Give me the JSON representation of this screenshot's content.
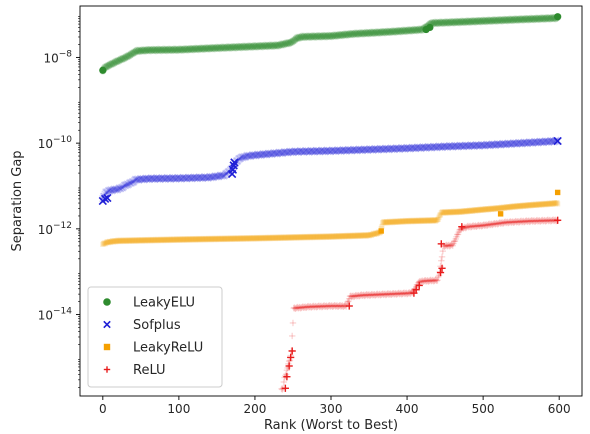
{
  "chart_data": {
    "type": "scatter",
    "title": "",
    "xlabel": "Rank (Worst to Best)",
    "ylabel": "Separation Gap",
    "x_ticks": [
      "0",
      "100",
      "200",
      "300",
      "400",
      "500",
      "600"
    ],
    "y_ticks": [
      "10^-14",
      "10^-12",
      "10^-10",
      "10^-8"
    ],
    "xlim": [
      -30,
      630
    ],
    "ylim_log10": [
      -15.9,
      -6.8
    ],
    "y_scale": "log",
    "grid": false,
    "legend_position": "lower-left",
    "series": [
      {
        "name": "LeakyELU",
        "color": "#2e8b2e",
        "marker": "circle",
        "curve": [
          [
            0,
            -8.3
          ],
          [
            2,
            -8.25
          ],
          [
            6,
            -8.2
          ],
          [
            12,
            -8.15
          ],
          [
            20,
            -8.08
          ],
          [
            30,
            -8.0
          ],
          [
            38,
            -7.92
          ],
          [
            44,
            -7.85
          ],
          [
            60,
            -7.83
          ],
          [
            100,
            -7.82
          ],
          [
            150,
            -7.78
          ],
          [
            230,
            -7.72
          ],
          [
            248,
            -7.65
          ],
          [
            255,
            -7.55
          ],
          [
            262,
            -7.52
          ],
          [
            300,
            -7.5
          ],
          [
            330,
            -7.45
          ],
          [
            380,
            -7.4
          ],
          [
            420,
            -7.35
          ],
          [
            426,
            -7.28
          ],
          [
            432,
            -7.2
          ],
          [
            460,
            -7.18
          ],
          [
            500,
            -7.15
          ],
          [
            540,
            -7.12
          ],
          [
            598,
            -7.08
          ]
        ],
        "highlight": [
          [
            0,
            -8.3
          ],
          [
            425,
            -7.35
          ],
          [
            430,
            -7.3
          ],
          [
            598,
            -7.05
          ]
        ]
      },
      {
        "name": "Sofplus",
        "color": "#1f1fd6",
        "marker": "x",
        "curve": [
          [
            0,
            -11.3
          ],
          [
            4,
            -11.15
          ],
          [
            10,
            -11.1
          ],
          [
            18,
            -11.08
          ],
          [
            24,
            -11.05
          ],
          [
            30,
            -10.98
          ],
          [
            38,
            -10.92
          ],
          [
            44,
            -10.85
          ],
          [
            60,
            -10.83
          ],
          [
            100,
            -10.82
          ],
          [
            140,
            -10.8
          ],
          [
            160,
            -10.75
          ],
          [
            170,
            -10.6
          ],
          [
            175,
            -10.45
          ],
          [
            180,
            -10.35
          ],
          [
            190,
            -10.3
          ],
          [
            200,
            -10.28
          ],
          [
            250,
            -10.2
          ],
          [
            300,
            -10.18
          ],
          [
            350,
            -10.15
          ],
          [
            400,
            -10.12
          ],
          [
            450,
            -10.08
          ],
          [
            500,
            -10.05
          ],
          [
            550,
            -10.0
          ],
          [
            598,
            -9.95
          ]
        ],
        "highlight": [
          [
            0,
            -11.35
          ],
          [
            3,
            -11.3
          ],
          [
            6,
            -11.28
          ],
          [
            170,
            -10.72
          ],
          [
            171,
            -10.62
          ],
          [
            172,
            -10.52
          ],
          [
            173,
            -10.45
          ],
          [
            598,
            -9.95
          ]
        ]
      },
      {
        "name": "LeakyReLU",
        "color": "#f5a000",
        "marker": "square",
        "curve": [
          [
            0,
            -12.35
          ],
          [
            5,
            -12.32
          ],
          [
            10,
            -12.3
          ],
          [
            20,
            -12.28
          ],
          [
            100,
            -12.25
          ],
          [
            200,
            -12.22
          ],
          [
            300,
            -12.18
          ],
          [
            350,
            -12.15
          ],
          [
            365,
            -12.08
          ],
          [
            368,
            -11.85
          ],
          [
            400,
            -11.82
          ],
          [
            440,
            -11.8
          ],
          [
            445,
            -11.62
          ],
          [
            470,
            -11.6
          ],
          [
            500,
            -11.55
          ],
          [
            520,
            -11.52
          ],
          [
            540,
            -11.48
          ],
          [
            560,
            -11.45
          ],
          [
            598,
            -11.4
          ]
        ],
        "highlight": [
          [
            366,
            -12.05
          ],
          [
            523,
            -11.65
          ],
          [
            598,
            -11.15
          ]
        ]
      },
      {
        "name": "ReLU",
        "color": "#e81c1c",
        "marker": "plus",
        "curve": [
          [
            235,
            -15.75
          ],
          [
            237,
            -15.72
          ],
          [
            239,
            -15.45
          ],
          [
            241,
            -15.4
          ],
          [
            244,
            -15.15
          ],
          [
            246,
            -15.05
          ],
          [
            248,
            -14.85
          ],
          [
            251,
            -13.85
          ],
          [
            270,
            -13.82
          ],
          [
            300,
            -13.8
          ],
          [
            320,
            -13.8
          ],
          [
            325,
            -13.58
          ],
          [
            340,
            -13.55
          ],
          [
            380,
            -13.52
          ],
          [
            405,
            -13.5
          ],
          [
            410,
            -13.42
          ],
          [
            415,
            -13.25
          ],
          [
            420,
            -13.22
          ],
          [
            440,
            -13.2
          ],
          [
            443,
            -13.0
          ],
          [
            448,
            -12.4
          ],
          [
            460,
            -12.38
          ],
          [
            470,
            -12.0
          ],
          [
            480,
            -11.95
          ],
          [
            500,
            -11.92
          ],
          [
            530,
            -11.85
          ],
          [
            560,
            -11.82
          ],
          [
            598,
            -11.8
          ]
        ],
        "highlight": [
          [
            240,
            -15.72
          ],
          [
            242,
            -15.45
          ],
          [
            245,
            -15.2
          ],
          [
            247,
            -15.0
          ],
          [
            249,
            -14.85
          ],
          [
            324,
            -13.8
          ],
          [
            409,
            -13.5
          ],
          [
            412,
            -13.42
          ],
          [
            416,
            -13.32
          ],
          [
            444,
            -13.02
          ],
          [
            446,
            -12.92
          ],
          [
            445,
            -12.35
          ],
          [
            472,
            -11.95
          ],
          [
            598,
            -11.8
          ]
        ]
      }
    ]
  }
}
